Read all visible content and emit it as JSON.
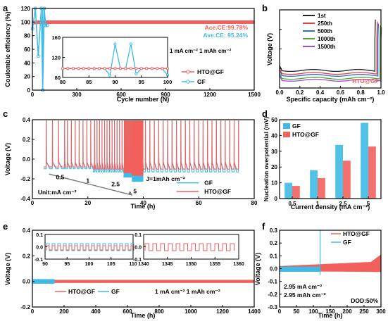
{
  "colors": {
    "red": "#f2605c",
    "blue": "#3dbbe6",
    "axis": "#000000",
    "cyc1": "#222222",
    "cyc250": "#e0424a",
    "cyc500": "#2f6fd1",
    "cyc1000": "#4fa63a",
    "cyc1500": "#a04ad0"
  },
  "chart_data": [
    {
      "panel": "a",
      "type": "line",
      "xlabel": "Cycle number (N)",
      "ylabel": "Coulombic efficiency (%)",
      "xlim": [
        0,
        1500
      ],
      "ylim": [
        0,
        120
      ],
      "xticks": [
        "0",
        "300",
        "600",
        "900",
        "1200",
        "1500"
      ],
      "yticks": [
        "0",
        "20",
        "40",
        "60",
        "80",
        "100",
        "120"
      ],
      "series": [
        {
          "name": "HTO@GF",
          "color": "red",
          "x": [
            1,
            50,
            200,
            400,
            600,
            800,
            1000,
            1200,
            1400,
            1500
          ],
          "y": [
            99,
            99.8,
            99.8,
            99.8,
            99.8,
            99.8,
            99.8,
            99.8,
            99.8,
            99.8
          ]
        },
        {
          "name": "GF",
          "color": "blue",
          "x": [
            1,
            20,
            40,
            60,
            70,
            80,
            90,
            100
          ],
          "y": [
            90,
            120,
            50,
            120,
            0,
            120,
            95,
            95
          ]
        }
      ],
      "annotations": [
        "Ace.CE:99.78%",
        "Ave.CE: 95.24%"
      ],
      "inset": {
        "xticks": [
          "80",
          "85",
          "90",
          "95",
          "100"
        ],
        "yticks": [
          "80",
          "120",
          "160"
        ],
        "xlim": [
          80,
          100
        ],
        "ylim": [
          80,
          170
        ],
        "label": "1 mA cm⁻²  1 mAh cm⁻²",
        "gf_x": [
          80,
          81,
          82,
          83,
          84,
          85,
          86,
          87,
          88,
          89,
          90,
          91,
          92,
          93,
          94,
          95,
          96,
          97,
          98,
          99,
          100
        ],
        "gf_y": [
          100,
          100,
          100,
          100,
          100,
          100,
          100,
          100,
          100,
          85,
          155,
          100,
          100,
          155,
          88,
          100,
          100,
          100,
          100,
          100,
          85
        ],
        "hto_x": [
          80,
          81,
          82,
          83,
          84,
          85,
          86,
          87,
          88,
          89,
          90,
          91,
          92,
          93,
          94,
          95,
          96,
          97,
          98,
          99,
          100
        ],
        "hto_y": [
          100,
          100,
          100,
          100,
          100,
          100,
          100,
          100,
          100,
          100,
          100,
          100,
          100,
          100,
          100,
          100,
          100,
          100,
          100,
          100,
          100
        ]
      }
    },
    {
      "panel": "b",
      "type": "line",
      "xlabel": "Specific capacity (mAh cm⁻²)",
      "ylabel": "Voltage (V)",
      "xlim": [
        0,
        1.0
      ],
      "ylim": [
        -0.2,
        0.6
      ],
      "xticks": [
        "0.0",
        "0.2",
        "0.4",
        "0.6",
        "0.8",
        "1.0"
      ],
      "yticks": [
        "",
        "",
        "",
        "",
        ""
      ],
      "series": [
        {
          "name": "1st",
          "color": "cyc1"
        },
        {
          "name": "250th",
          "color": "cyc250"
        },
        {
          "name": "500th",
          "color": "cyc500"
        },
        {
          "name": "1000th",
          "color": "cyc1000"
        },
        {
          "name": "1500th",
          "color": "cyc1500"
        }
      ],
      "annotations": [
        "HTO@GF"
      ]
    },
    {
      "panel": "c",
      "type": "line",
      "xlabel": "Time (h)",
      "ylabel": "Voltage (V)",
      "xlim": [
        0,
        80
      ],
      "ylim": [
        -0.4,
        0.5
      ],
      "xticks": [
        "0",
        "20",
        "40",
        "60",
        "80"
      ],
      "yticks": [
        "-0.4",
        "-0.2",
        "0.0",
        "0.2",
        "0.4"
      ],
      "series": [
        {
          "name": "GF",
          "color": "blue"
        },
        {
          "name": "HTO@GF",
          "color": "red"
        }
      ],
      "annotations": [
        "0.5",
        "1",
        "2.5",
        "5",
        "J=1mAh cm⁻²",
        "Unit:mA cm⁻²"
      ]
    },
    {
      "panel": "d",
      "type": "bar",
      "xlabel": "Current density (mA cm⁻²)",
      "ylabel": "Nucleation overpotential (mV)",
      "categories": [
        "0.5",
        "1",
        "2.5",
        "5"
      ],
      "ylim": [
        0,
        50
      ],
      "yticks": [
        "0",
        "10",
        "20",
        "30",
        "40",
        "50"
      ],
      "series": [
        {
          "name": "GF",
          "color": "blue",
          "values": [
            10,
            18,
            34,
            48
          ]
        },
        {
          "name": "HTO@GF",
          "color": "red",
          "values": [
            8,
            13,
            24,
            33
          ]
        }
      ]
    },
    {
      "panel": "e",
      "type": "line",
      "xlabel": "Time (h)",
      "ylabel": "Voltage (V)",
      "xlim": [
        0,
        1400
      ],
      "ylim": [
        -0.2,
        0.4
      ],
      "xticks": [
        "0",
        "200",
        "400",
        "600",
        "800",
        "1000",
        "1200",
        "1400"
      ],
      "yticks": [
        "-0.2",
        "0.0",
        "0.2",
        "0.4"
      ],
      "series": [
        {
          "name": "HTO@GF",
          "color": "red"
        },
        {
          "name": "GF",
          "color": "blue"
        }
      ],
      "annotations": [
        "1 mA cm⁻²  1 mAh cm⁻²"
      ],
      "inset_left": {
        "xticks": [
          "90",
          "95",
          "100",
          "105",
          "110"
        ],
        "yticks": [
          "0.1",
          "0.0",
          "-0.1"
        ]
      },
      "inset_right": {
        "xticks": [
          "1340",
          "1345",
          "1350",
          "1355",
          "1360"
        ],
        "yticks": [
          "0.1",
          "0.0",
          "-0.1"
        ]
      }
    },
    {
      "panel": "f",
      "type": "line",
      "xlabel": "Time (h)",
      "ylabel": "Voltage (V)",
      "xlim": [
        0,
        300
      ],
      "ylim": [
        -0.3,
        0.3
      ],
      "xticks": [
        "0",
        "50",
        "100",
        "150",
        "200",
        "250",
        "300"
      ],
      "yticks": [
        "-0.3",
        "-0.2",
        "-0.1",
        "0.0",
        "0.1",
        "0.2",
        "0.3"
      ],
      "series": [
        {
          "name": "HTO@GF",
          "color": "red"
        },
        {
          "name": "GF",
          "color": "blue"
        }
      ],
      "annotations": [
        "2.95 mA cm⁻²",
        "2.95 mAh cm⁻²",
        "DOD:50%"
      ]
    }
  ],
  "panel_letters": [
    "a",
    "b",
    "c",
    "d",
    "e",
    "f"
  ]
}
